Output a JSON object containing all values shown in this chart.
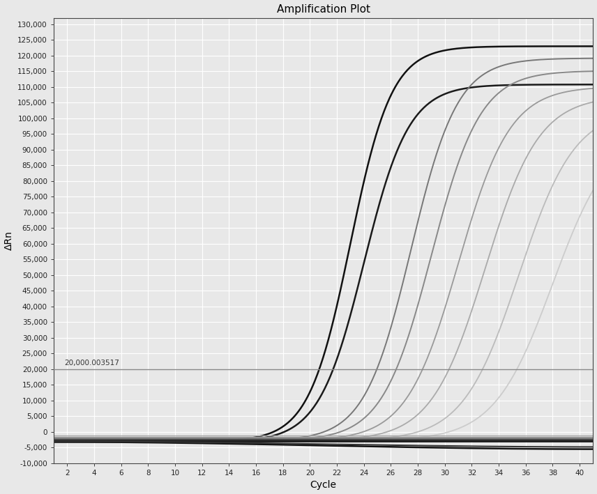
{
  "title": "Amplification Plot",
  "xlabel": "Cycle",
  "ylabel": "ΔRn",
  "xlim": [
    1,
    41
  ],
  "ylim": [
    -10000,
    132000
  ],
  "xticks": [
    2,
    4,
    6,
    8,
    10,
    12,
    14,
    16,
    18,
    20,
    22,
    24,
    26,
    28,
    30,
    32,
    34,
    36,
    38,
    40
  ],
  "yticks": [
    -10000,
    -5000,
    0,
    5000,
    10000,
    15000,
    20000,
    25000,
    30000,
    35000,
    40000,
    45000,
    50000,
    55000,
    60000,
    65000,
    70000,
    75000,
    80000,
    85000,
    90000,
    95000,
    100000,
    105000,
    110000,
    115000,
    120000,
    125000,
    130000
  ],
  "threshold_y": 20000,
  "threshold_label": "20,000.003517",
  "background_color": "#e8e8e8",
  "grid_color": "#ffffff",
  "threshold_color": "#888888",
  "sigmoid_curves": [
    {
      "midpoint": 23.0,
      "L": 126000,
      "k": 0.65,
      "baseline": -3000,
      "color": "#111111",
      "lw": 1.8
    },
    {
      "midpoint": 24.0,
      "L": 114000,
      "k": 0.6,
      "baseline": -3200,
      "color": "#1a1a1a",
      "lw": 1.8
    },
    {
      "midpoint": 27.5,
      "L": 122000,
      "k": 0.58,
      "baseline": -2800,
      "color": "#777777",
      "lw": 1.4
    },
    {
      "midpoint": 29.0,
      "L": 118000,
      "k": 0.55,
      "baseline": -2800,
      "color": "#888888",
      "lw": 1.4
    },
    {
      "midpoint": 31.0,
      "L": 113000,
      "k": 0.52,
      "baseline": -2800,
      "color": "#999999",
      "lw": 1.3
    },
    {
      "midpoint": 33.0,
      "L": 110000,
      "k": 0.5,
      "baseline": -2800,
      "color": "#aaaaaa",
      "lw": 1.3
    },
    {
      "midpoint": 35.5,
      "L": 106000,
      "k": 0.48,
      "baseline": -2800,
      "color": "#bbbbbb",
      "lw": 1.3
    },
    {
      "midpoint": 38.0,
      "L": 100000,
      "k": 0.46,
      "baseline": -2800,
      "color": "#cccccc",
      "lw": 1.3
    }
  ],
  "flat_curves": [
    {
      "color": "#111111",
      "lw": 2.0,
      "y0": -3000,
      "slope": -0.05
    },
    {
      "color": "#222222",
      "lw": 1.8,
      "y0": -2800,
      "slope": -0.04
    },
    {
      "color": "#333333",
      "lw": 1.5,
      "y0": -2500,
      "slope": -0.03
    },
    {
      "color": "#555555",
      "lw": 1.3,
      "y0": -2200,
      "slope": -0.025
    },
    {
      "color": "#777777",
      "lw": 1.2,
      "y0": -2000,
      "slope": -0.02
    },
    {
      "color": "#888888",
      "lw": 1.1,
      "y0": -1800,
      "slope": -0.015
    },
    {
      "color": "#999999",
      "lw": 1.0,
      "y0": -1500,
      "slope": -0.01
    },
    {
      "color": "#aaaaaa",
      "lw": 1.0,
      "y0": -1200,
      "slope": -0.005
    }
  ],
  "neg_curves": [
    {
      "color": "#111111",
      "lw": 1.8,
      "y0": -3200,
      "yend": -5500
    },
    {
      "color": "#333333",
      "lw": 1.5,
      "y0": -3000,
      "yend": -4800
    }
  ]
}
